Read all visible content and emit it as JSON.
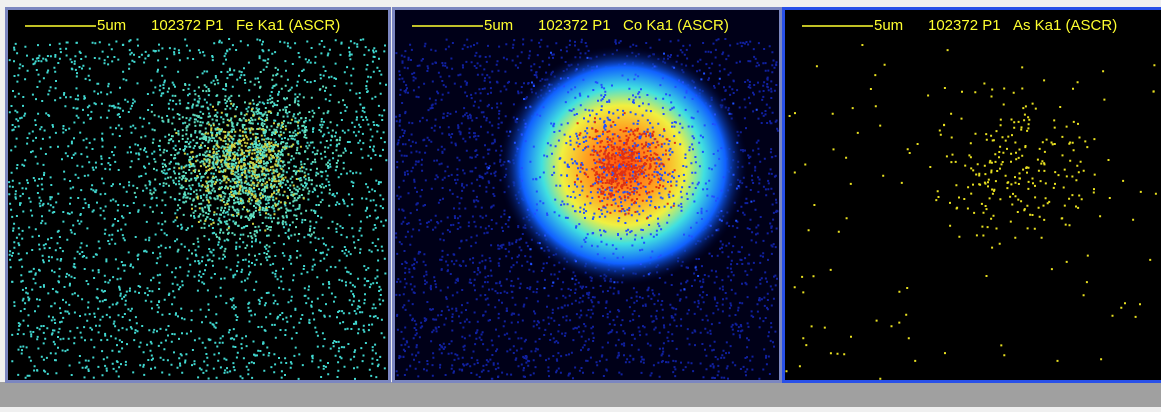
{
  "panels": [
    {
      "scale": "5um",
      "sample": "102372 P1",
      "element": "Fe Ka1 (ASCR)"
    },
    {
      "scale": "5um",
      "sample": "102372 P1",
      "element": "Co Ka1 (ASCR)"
    },
    {
      "scale": "5um",
      "sample": "102372 P1",
      "element": "As Ka1 (ASCR)"
    }
  ]
}
